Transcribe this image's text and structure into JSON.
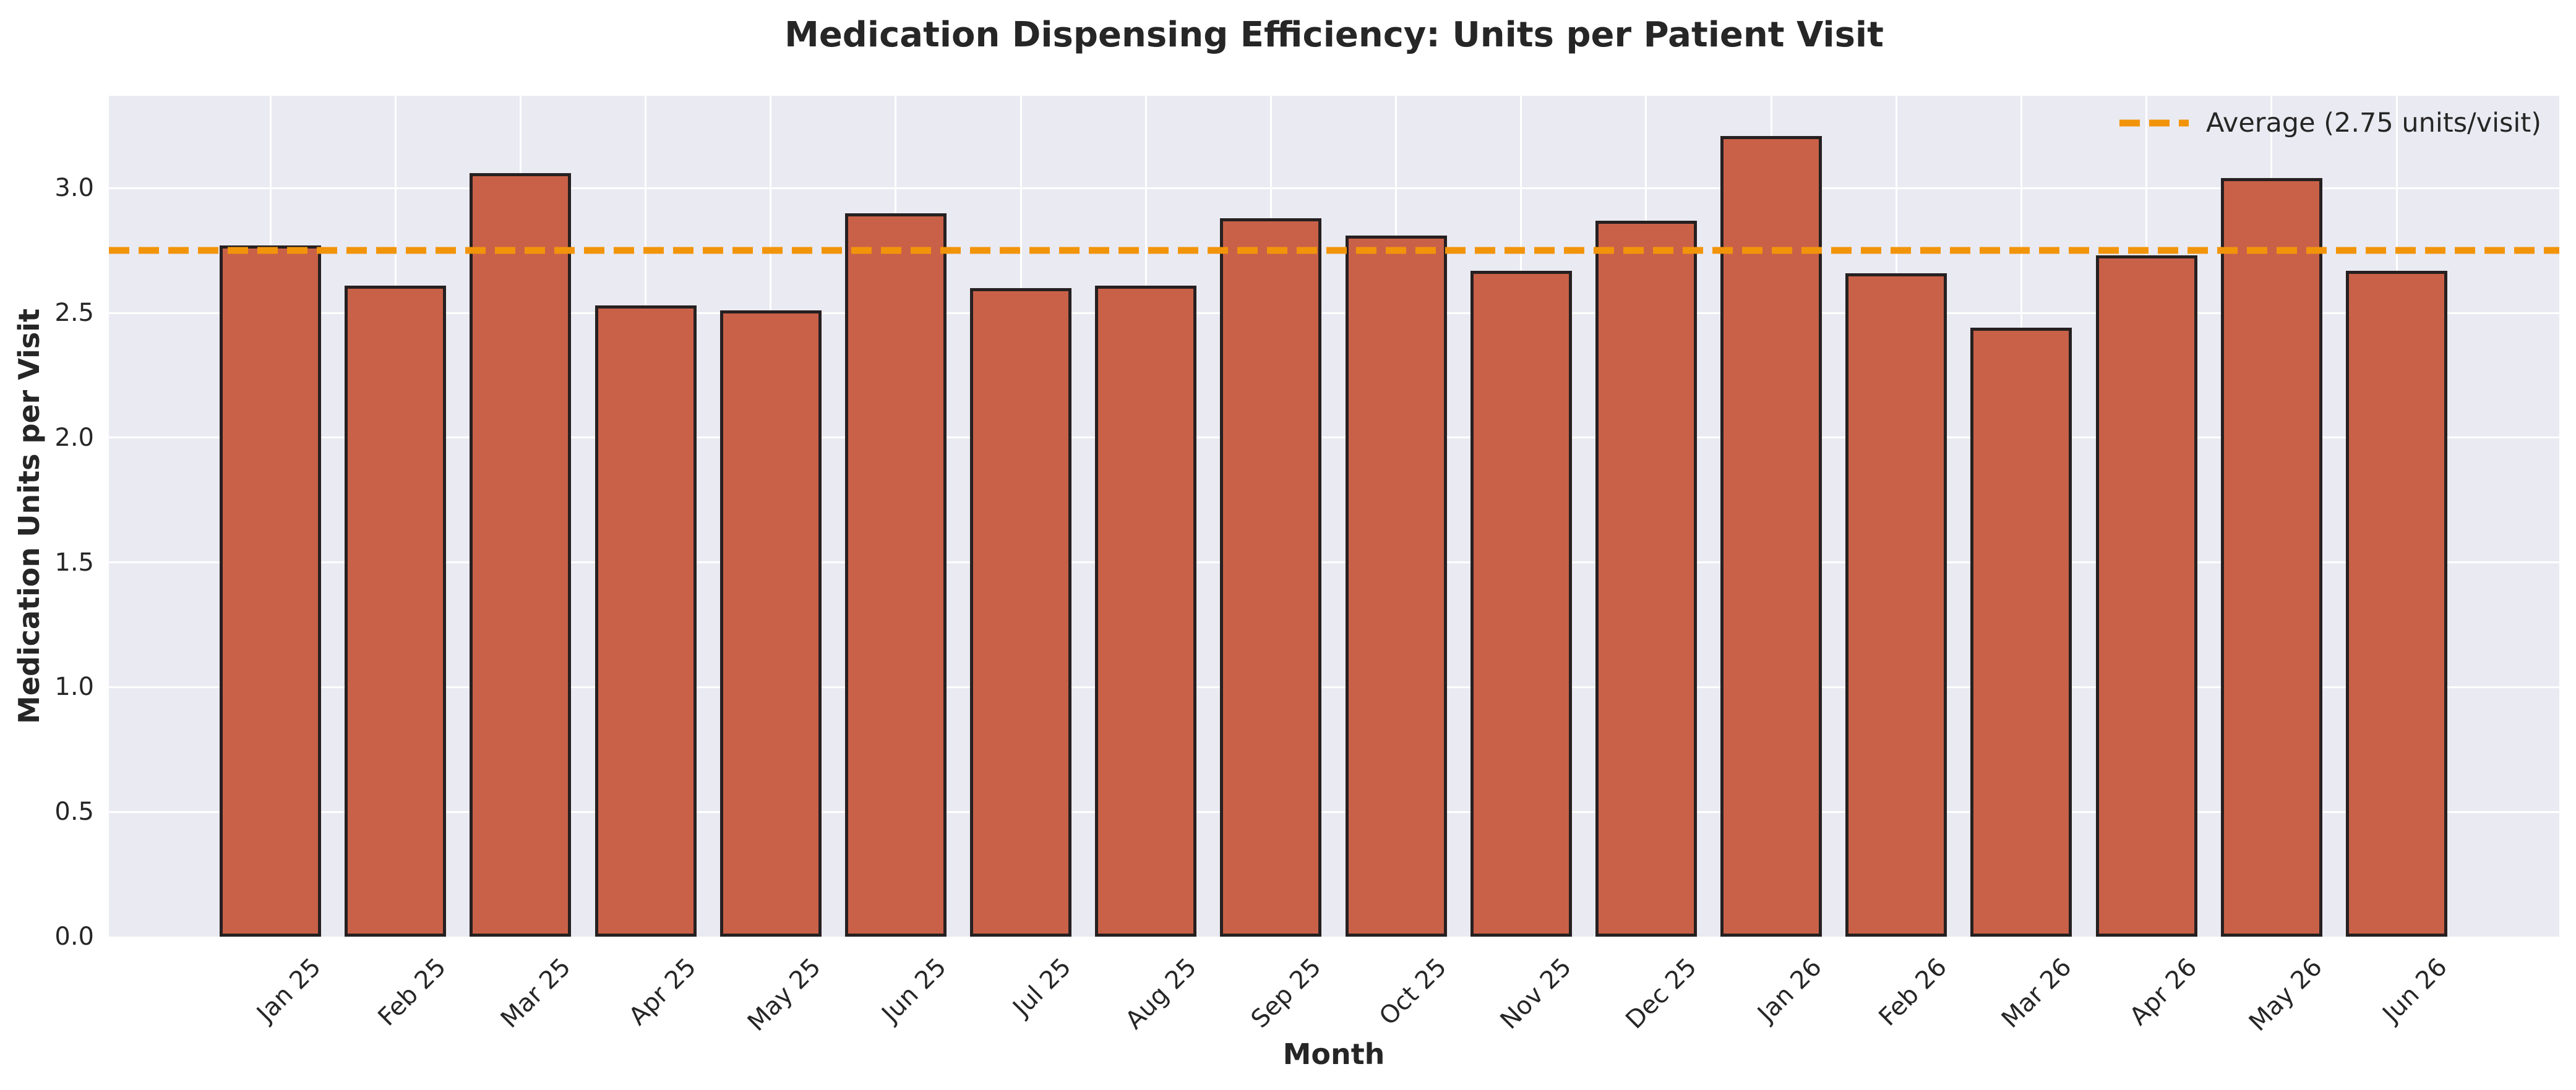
{
  "chart_data": {
    "type": "bar",
    "title": "Medication Dispensing Efficiency: Units per Patient Visit",
    "xlabel": "Month",
    "ylabel": "Medication Units per Visit",
    "categories": [
      "Jan 25",
      "Feb 25",
      "Mar 25",
      "Apr 25",
      "May 25",
      "Jun 25",
      "Jul 25",
      "Aug 25",
      "Sep 25",
      "Oct 25",
      "Nov 25",
      "Dec 25",
      "Jan 26",
      "Feb 26",
      "Mar 26",
      "Apr 26",
      "May 26",
      "Jun 26"
    ],
    "values": [
      2.77,
      2.61,
      3.06,
      2.53,
      2.51,
      2.9,
      2.6,
      2.61,
      2.88,
      2.81,
      2.67,
      2.87,
      3.21,
      2.66,
      2.44,
      2.73,
      3.04,
      2.67
    ],
    "ylim": [
      0,
      3.37
    ],
    "yticks": [
      0.0,
      0.5,
      1.0,
      1.5,
      2.0,
      2.5,
      3.0
    ],
    "grid": true,
    "legend_position": "upper right",
    "average_line": {
      "value": 2.75,
      "label": "Average (2.75 units/visit)",
      "style": "dashed"
    },
    "colors": {
      "bar_fill": "#c96148",
      "bar_edge": "#262021",
      "average_line": "#f2940a",
      "plot_background": "#eaeaf2",
      "gridline": "#ffffff",
      "text": "#262626"
    }
  }
}
